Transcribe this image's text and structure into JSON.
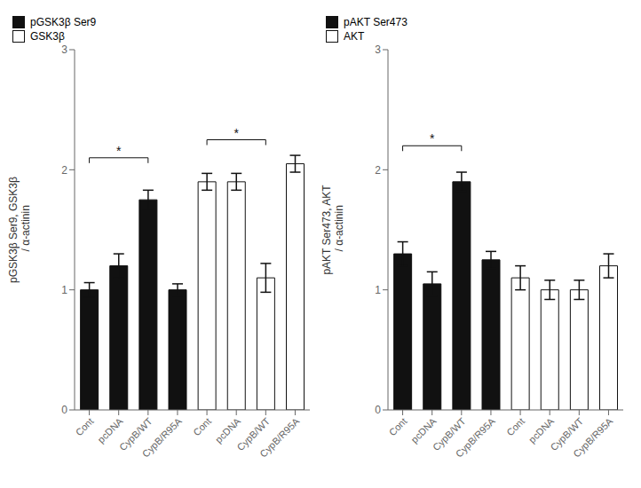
{
  "chart_data": [
    {
      "type": "bar",
      "ylabel": "pGSK3β Ser9, GSK3β\n / α-actinin",
      "categories": [
        "Cont",
        "pcDNA",
        "CypB/WT",
        "CypB/R95A",
        "Cont",
        "pcDNA",
        "CypB/WT",
        "CypB/R95A"
      ],
      "series": [
        {
          "name": "pGSK3β Ser9",
          "color": "#111111",
          "values": [
            1.0,
            1.2,
            1.75,
            1.0,
            null,
            null,
            null,
            null
          ],
          "errors": [
            0.06,
            0.1,
            0.08,
            0.05,
            null,
            null,
            null,
            null
          ]
        },
        {
          "name": "GSK3β",
          "color": "#ffffff",
          "values": [
            null,
            null,
            null,
            null,
            1.9,
            1.9,
            1.1,
            2.05
          ],
          "errors": [
            null,
            null,
            null,
            null,
            0.07,
            0.07,
            0.12,
            0.07
          ]
        }
      ],
      "ylim": [
        0,
        3
      ],
      "yticks": [
        0,
        1,
        2,
        3
      ],
      "grid": false,
      "legend": "upper right",
      "annotations": [
        {
          "text": "*",
          "x_start": 0,
          "x_end": 2,
          "y": 2.1
        },
        {
          "text": "*",
          "x_start": 4,
          "x_end": 6,
          "y": 2.25
        }
      ]
    },
    {
      "type": "bar",
      "ylabel": "pAKT Ser473, AKT\n / α-actinin",
      "categories": [
        "Cont",
        "pcDNA",
        "CypB/WT",
        "CypB/R95A",
        "Cont",
        "pcDNA",
        "CypB/WT",
        "CypB/R95A"
      ],
      "series": [
        {
          "name": "pAKT Ser473",
          "color": "#111111",
          "values": [
            1.3,
            1.05,
            1.9,
            1.25,
            null,
            null,
            null,
            null
          ],
          "errors": [
            0.1,
            0.1,
            0.08,
            0.07,
            null,
            null,
            null,
            null
          ]
        },
        {
          "name": "AKT",
          "color": "#ffffff",
          "values": [
            null,
            null,
            null,
            null,
            1.1,
            1.0,
            1.0,
            1.2
          ],
          "errors": [
            null,
            null,
            null,
            null,
            0.1,
            0.08,
            0.08,
            0.1
          ]
        }
      ],
      "ylim": [
        0,
        3
      ],
      "yticks": [
        0,
        1,
        2,
        3
      ],
      "grid": false,
      "legend": "upper right",
      "annotations": [
        {
          "text": "*",
          "x_start": 0,
          "x_end": 2,
          "y": 2.2
        }
      ]
    }
  ]
}
